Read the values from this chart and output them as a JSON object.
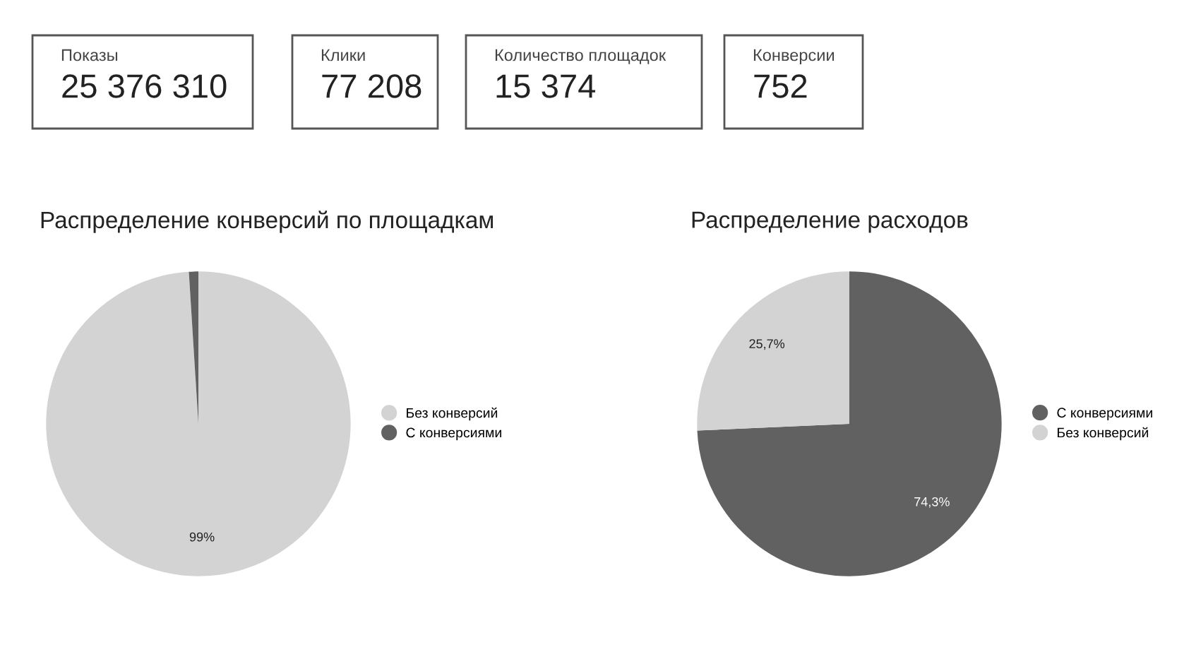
{
  "chart_data": [
    {
      "type": "other",
      "title": "Показы",
      "annotations": [
        "25 376 310"
      ]
    },
    {
      "type": "other",
      "title": "Клики",
      "annotations": [
        "77 208"
      ]
    },
    {
      "type": "other",
      "title": "Количество площадок",
      "annotations": [
        "15 374"
      ]
    },
    {
      "type": "other",
      "title": "Конверсии",
      "annotations": [
        "752"
      ]
    },
    {
      "type": "pie",
      "title": "Распределение конверсий по площадкам",
      "categories": [
        "Без конверсий",
        "С конверсиями"
      ],
      "values": [
        99,
        1
      ],
      "colors": [
        "#d3d3d3",
        "#616161"
      ],
      "value_labels": [
        "99%",
        null
      ],
      "legend": "right"
    },
    {
      "type": "pie",
      "title": "Распределение расходов",
      "categories": [
        "С конверсиями",
        "Без конверсий"
      ],
      "values": [
        74.3,
        25.7
      ],
      "colors": [
        "#616161",
        "#d3d3d3"
      ],
      "value_labels": [
        "74,3%",
        "25,7%"
      ],
      "legend": "right"
    }
  ]
}
